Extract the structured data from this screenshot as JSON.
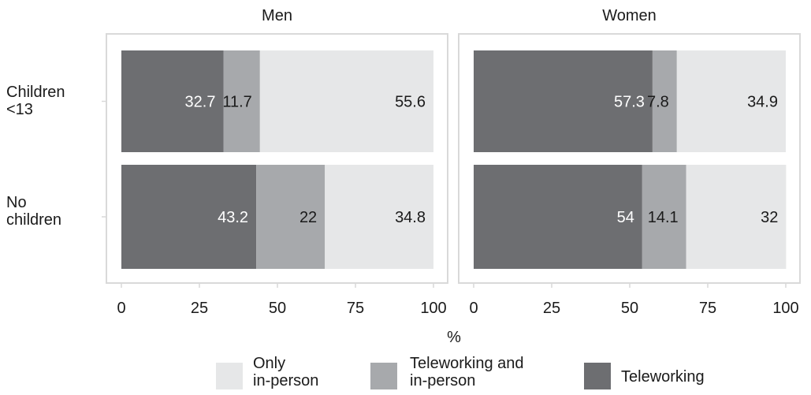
{
  "chart_data": {
    "type": "bar",
    "orientation": "horizontal",
    "stacked": true,
    "xlabel": "%",
    "xlim": [
      0,
      100
    ],
    "xticks": [
      0,
      25,
      50,
      75,
      100
    ],
    "categories": [
      "Children\n<13",
      "No\nchildren"
    ],
    "legend_position": "bottom",
    "grid": false,
    "series": [
      {
        "name": "Teleworking",
        "color": "#6d6e71",
        "label_color": "#ffffff"
      },
      {
        "name": "Teleworking and\nin-person",
        "color": "#a7a9ac",
        "label_color": "#1a1a1a"
      },
      {
        "name": "Only\nin-person",
        "color": "#e6e7e8",
        "label_color": "#1a1a1a"
      }
    ],
    "legend_order": [
      2,
      1,
      0
    ],
    "panels": [
      {
        "title": "Men",
        "values": [
          [
            32.7,
            11.7,
            55.6
          ],
          [
            43.2,
            22,
            34.8
          ]
        ],
        "labels": [
          [
            "32.7",
            "11.7",
            "55.6"
          ],
          [
            "43.2",
            "22",
            "34.8"
          ]
        ]
      },
      {
        "title": "Women",
        "values": [
          [
            57.3,
            7.8,
            34.9
          ],
          [
            54,
            14.1,
            32
          ]
        ],
        "labels": [
          [
            "57.3",
            "7.8",
            "34.9"
          ],
          [
            "54",
            "14.1",
            "32"
          ]
        ]
      }
    ]
  }
}
